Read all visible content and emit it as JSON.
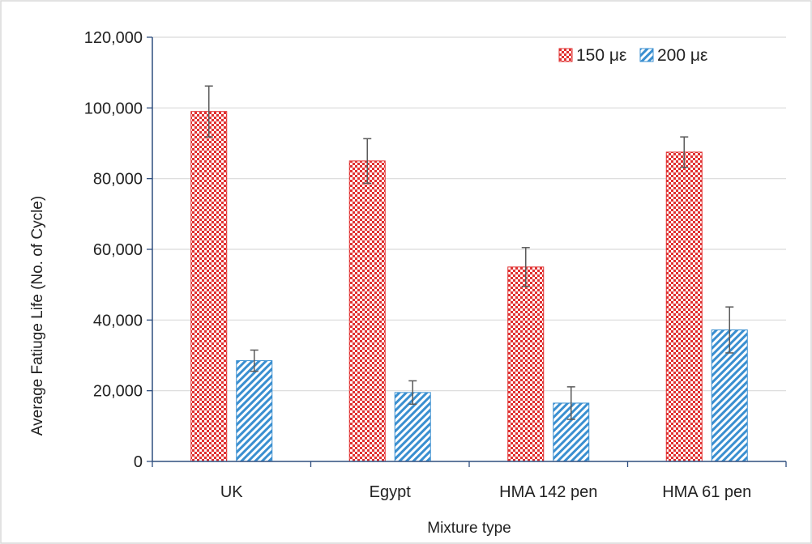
{
  "chart_data": {
    "type": "bar",
    "title": "",
    "xlabel": "Mixture type",
    "ylabel": "Average Fatiuge Life (No. of Cycle)",
    "ylim": [
      0,
      120000
    ],
    "ytick_values": [
      0,
      20000,
      40000,
      60000,
      80000,
      100000,
      120000
    ],
    "ytick_labels": [
      "0",
      "20,000",
      "40,000",
      "60,000",
      "80,000",
      "100,000",
      "120,000"
    ],
    "categories": [
      "UK",
      "Egypt",
      "HMA 142 pen",
      "HMA 61 pen"
    ],
    "grid": "horizontal",
    "legend_position": "top-right",
    "series": [
      {
        "name": "150 με",
        "values": [
          99000,
          85000,
          55000,
          87500
        ],
        "error": [
          7200,
          6300,
          5500,
          4300
        ],
        "color": "#e03030",
        "pattern": "checker"
      },
      {
        "name": "200 με",
        "values": [
          28500,
          19500,
          16500,
          37200
        ],
        "error": [
          3000,
          3300,
          4600,
          6500
        ],
        "color": "#3a8fd0",
        "pattern": "diagonal"
      }
    ]
  }
}
